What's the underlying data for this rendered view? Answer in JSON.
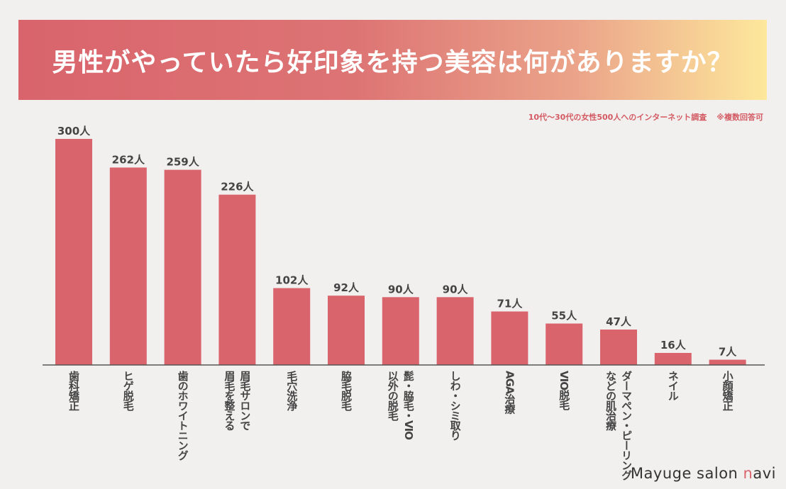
{
  "title": "男性がやっていたら好印象を持つ美容は何がありますか？",
  "note": {
    "survey": "10代〜30代の女性500人へのインターネット調査",
    "multiple": "※複数回答可"
  },
  "brand": {
    "prefix": "Mayuge salon ",
    "accent_letter": "n",
    "suffix": "avi"
  },
  "colors": {
    "bar": "#d9646c",
    "axis": "#555555",
    "label": "#444444"
  },
  "chart_data": {
    "type": "bar",
    "title": "男性がやっていたら好印象を持つ美容は何がありますか？",
    "unit": "人",
    "categories": [
      "歯科矯正",
      "ヒゲ脱毛",
      "歯のホワイトニング",
      "眉毛サロンで\n眉毛を整える",
      "毛穴洗浄",
      "脇毛脱毛",
      "髭・脇毛・VIO\n以外の脱毛",
      "しわ・シミ取り",
      "AGA治療",
      "VIO脱毛",
      "ダーマペン・ピーリング\nなどの肌治療",
      "ネイル",
      "小顔矯正"
    ],
    "values": [
      300,
      262,
      259,
      226,
      102,
      92,
      90,
      90,
      71,
      55,
      47,
      16,
      7
    ],
    "value_labels": [
      "300人",
      "262人",
      "259人",
      "226人",
      "102人",
      "92人",
      "90人",
      "90人",
      "71人",
      "55人",
      "47人",
      "16人",
      "7人"
    ],
    "ylim": [
      0,
      300
    ],
    "xlabel": "",
    "ylabel": "",
    "grid": false,
    "legend": "none"
  }
}
